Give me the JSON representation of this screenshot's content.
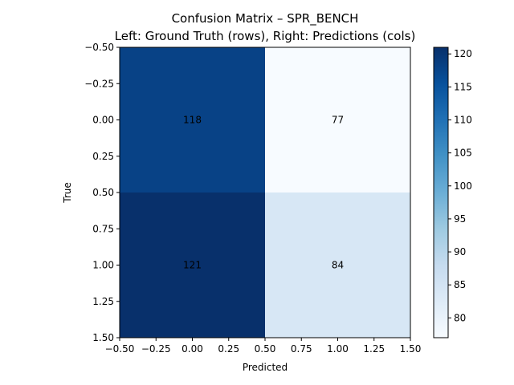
{
  "chart_data": {
    "type": "heatmap",
    "title": "Confusion Matrix – SPR_BENCH",
    "subtitle": "Left: Ground Truth (rows), Right: Predictions (cols)",
    "xlabel": "Predicted",
    "ylabel": "True",
    "xlim": [
      -0.5,
      1.5
    ],
    "ylim": [
      -0.5,
      1.5
    ],
    "y_inverted": true,
    "xticks": [
      -0.5,
      -0.25,
      0.0,
      0.25,
      0.5,
      0.75,
      1.0,
      1.25,
      1.5
    ],
    "xtick_labels": [
      "−0.50",
      "−0.25",
      "0.00",
      "0.25",
      "0.50",
      "0.75",
      "1.00",
      "1.25",
      "1.50"
    ],
    "yticks": [
      -0.5,
      -0.25,
      0.0,
      0.25,
      0.5,
      0.75,
      1.0,
      1.25,
      1.5
    ],
    "ytick_labels": [
      "−0.50",
      "−0.25",
      "0.00",
      "0.25",
      "0.50",
      "0.75",
      "1.00",
      "1.25",
      "1.50"
    ],
    "matrix": [
      [
        118,
        77
      ],
      [
        121,
        84
      ]
    ],
    "cell_labels": [
      [
        "118",
        "77"
      ],
      [
        "121",
        "84"
      ]
    ],
    "colormap": "Blues",
    "colorbar": {
      "vmin": 77,
      "vmax": 121,
      "ticks": [
        80,
        85,
        90,
        95,
        100,
        105,
        110,
        115,
        120
      ],
      "tick_labels": [
        "80",
        "85",
        "90",
        "95",
        "100",
        "105",
        "110",
        "115",
        "120"
      ]
    }
  }
}
